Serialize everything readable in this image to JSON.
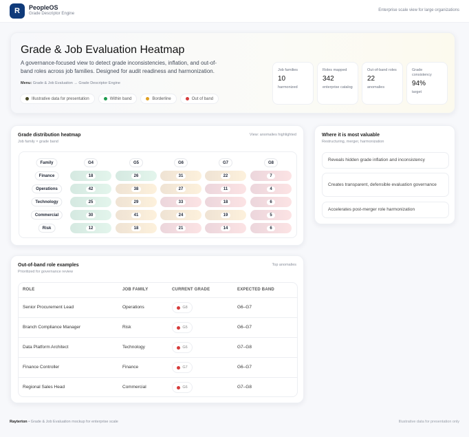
{
  "header": {
    "logo_letter": "R",
    "app_name": "PeopleOS",
    "app_subtitle": "Grade Descriptor Engine",
    "tagline": "Enterprise scale view for large organizations"
  },
  "hero": {
    "title": "Grade & Job Evaluation Heatmap",
    "description": "A governance-focused view to detect grade inconsistencies, inflation, and out-of-band roles across job families. Designed for audit readiness and harmonization.",
    "menu_label": "Menu:",
    "menu_path": "Grade & Job Evaluation → Grade Descriptor Engine",
    "legend": [
      {
        "label": "Illustrative data for presentation",
        "color": "#4a4a2a"
      },
      {
        "label": "Within band",
        "color": "#1e9b4f"
      },
      {
        "label": "Borderline",
        "color": "#e0a020"
      },
      {
        "label": "Out of band",
        "color": "#d63b3b"
      }
    ],
    "stats": [
      {
        "label": "Job families",
        "value": "10",
        "sub": "harmonized"
      },
      {
        "label": "Roles mapped",
        "value": "342",
        "sub": "enterprise catalog"
      },
      {
        "label": "Out-of-band roles",
        "value": "22",
        "sub": "anomalies"
      },
      {
        "label": "Grade consistency",
        "value": "94%",
        "sub": "target"
      }
    ]
  },
  "heatmap": {
    "title": "Grade distribution heatmap",
    "subtitle": "Job family × grade band",
    "view": "View: anomalies highlighted",
    "corner": "Family",
    "grades": [
      "G4",
      "G5",
      "G6",
      "G7",
      "G8"
    ],
    "rows": [
      {
        "family": "Finance",
        "values": [
          18,
          26,
          31,
          22,
          7
        ],
        "status": [
          "within",
          "within",
          "borderline",
          "borderline",
          "out"
        ]
      },
      {
        "family": "Operations",
        "values": [
          42,
          38,
          27,
          11,
          4
        ],
        "status": [
          "within",
          "borderline",
          "borderline",
          "out",
          "out"
        ]
      },
      {
        "family": "Technology",
        "values": [
          25,
          29,
          33,
          18,
          6
        ],
        "status": [
          "within",
          "borderline",
          "out",
          "out",
          "out"
        ]
      },
      {
        "family": "Commercial",
        "values": [
          30,
          41,
          24,
          19,
          5
        ],
        "status": [
          "within",
          "borderline",
          "borderline",
          "borderline",
          "out"
        ]
      },
      {
        "family": "Risk",
        "values": [
          12,
          18,
          21,
          14,
          6
        ],
        "status": [
          "within",
          "borderline",
          "out",
          "out",
          "out"
        ]
      }
    ]
  },
  "value_panel": {
    "title": "Where it is most valuable",
    "subtitle": "Restructuring, merger, harmonization",
    "items": [
      "Reveals hidden grade inflation and inconsistency",
      "Creates transparent, defensible evaluation governance",
      "Accelerates post-merger role harmonization"
    ]
  },
  "anomalies": {
    "title": "Out-of-band role examples",
    "subtitle": "Prioritized for governance review",
    "tag": "Top anomalies",
    "columns": [
      "ROLE",
      "JOB FAMILY",
      "CURRENT GRADE",
      "EXPECTED BAND"
    ],
    "rows": [
      {
        "role": "Senior Procurement Lead",
        "family": "Operations",
        "grade": "G8",
        "expected": "G6–G7"
      },
      {
        "role": "Branch Compliance Manager",
        "family": "Risk",
        "grade": "G5",
        "expected": "G6–G7"
      },
      {
        "role": "Data Platform Architect",
        "family": "Technology",
        "grade": "G6",
        "expected": "G7–G8"
      },
      {
        "role": "Finance Controller",
        "family": "Finance",
        "grade": "G7",
        "expected": "G6–G7"
      },
      {
        "role": "Regional Sales Head",
        "family": "Commercial",
        "grade": "G6",
        "expected": "G7–G8"
      }
    ]
  },
  "footer": {
    "brand": "Rayterton",
    "text": " • Grade & Job Evaluation mockup for enterprise scale",
    "right": "Illustrative data for presentation only"
  }
}
